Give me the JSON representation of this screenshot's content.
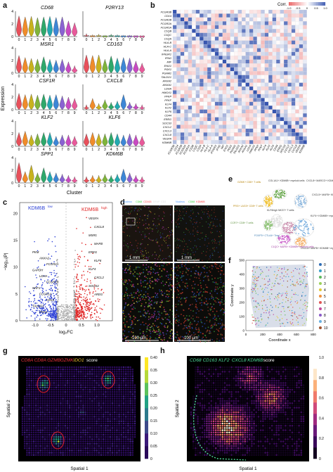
{
  "panel_labels": [
    "a",
    "b",
    "c",
    "d",
    "e",
    "f",
    "g",
    "h"
  ],
  "panel_a": {
    "genes": [
      "CD68",
      "P2RY13",
      "MSR1",
      "CD163",
      "CSF1R",
      "CXCL8",
      "KLF2",
      "KLF6",
      "SPP1",
      "KDM6B"
    ],
    "ylabel": "Expression",
    "xlabel": "Cluster",
    "clusters": [
      "0",
      "1",
      "2",
      "3",
      "4",
      "5",
      "6",
      "7",
      "8",
      "9"
    ],
    "cluster_colors": [
      "#e8505b",
      "#f08c2b",
      "#c8b21e",
      "#7fb43a",
      "#2ea86b",
      "#22a9b0",
      "#3d86d6",
      "#8a63d2",
      "#c84ac2",
      "#e85a9a"
    ],
    "violin_levels": [
      [
        0.82,
        0.78,
        0.8,
        0.75,
        0.78,
        0.8,
        0.76,
        0.78,
        0.62,
        0.55
      ],
      [
        0.12,
        0.08,
        0.1,
        0.06,
        0.1,
        0.08,
        0.06,
        0.06,
        0.05,
        0.04
      ],
      [
        0.7,
        0.62,
        0.58,
        0.56,
        0.65,
        0.55,
        0.52,
        0.55,
        0.45,
        0.3
      ],
      [
        0.72,
        0.7,
        0.72,
        0.55,
        0.68,
        0.6,
        0.62,
        0.6,
        0.48,
        0.4
      ],
      [
        0.65,
        0.6,
        0.62,
        0.58,
        0.62,
        0.58,
        0.6,
        0.55,
        0.5,
        0.45
      ],
      [
        0.2,
        0.45,
        0.25,
        0.4,
        0.3,
        0.35,
        0.6,
        0.3,
        0.25,
        0.2
      ],
      [
        0.55,
        0.6,
        0.45,
        0.5,
        0.55,
        0.55,
        0.4,
        0.45,
        0.45,
        0.4
      ],
      [
        0.5,
        0.55,
        0.5,
        0.5,
        0.55,
        0.5,
        0.45,
        0.5,
        0.45,
        0.4
      ],
      [
        0.8,
        0.45,
        0.7,
        0.4,
        0.6,
        0.45,
        0.4,
        0.35,
        0.3,
        0.25
      ],
      [
        0.25,
        0.3,
        0.3,
        0.35,
        0.3,
        0.35,
        0.55,
        0.4,
        0.3,
        0.25
      ]
    ]
  },
  "panel_b": {
    "legend_title": "Corr.",
    "legend_ticks": [
      "-1.0",
      "-0.5",
      "0",
      "0.5",
      "1.0"
    ],
    "genes": [
      "FCGR3B",
      "CD14",
      "FCGR2B",
      "FCGR2A",
      "FCGR1A",
      "C1QB",
      "C1QC",
      "C1QA",
      "HLA-B",
      "HLA-C",
      "HLA-A",
      "IFNGR1",
      "IFNG",
      "MIF",
      "ENO1",
      "PGK1",
      "PGAM1",
      "TALDO1",
      "ANXA2",
      "ANXA1",
      "LDHA",
      "HMOX1",
      "PFKP",
      "PFKF",
      "KLF4",
      "KLF2",
      "KLF6",
      "CD44",
      "EREG",
      "SOCS3",
      "CXCL2",
      "CXCL3",
      "CXCL8",
      "VEGFA",
      "KDM6B"
    ]
  },
  "panel_c": {
    "label_low": "KDM6B",
    "label_low_sup": "low",
    "label_high": "KDM6B",
    "label_high_sup": "high",
    "xlabel": "log₂FC",
    "ylabel": "−log₁₀|P|",
    "xticks": [
      "-1.0",
      "-0.5",
      "0",
      "0.5",
      "1.0"
    ],
    "yticks": [
      "0",
      "5",
      "10",
      "15",
      "20"
    ],
    "left_genes": [
      "PKM",
      "ANXA2",
      "FCGR2A",
      "GAPDH",
      "LDHA",
      "FCGR2B",
      "NRF1",
      "FCGR1A",
      "CD14",
      "TALDO1",
      "PGK1"
    ],
    "right_genes": [
      "VEGFA",
      "CXCL8",
      "MSR1",
      "MAFB",
      "EREG",
      "KLF6",
      "KLF4",
      "CXCL2",
      "SOCS3",
      "AREG"
    ]
  },
  "panel_d": {
    "stains_left": [
      "Nucleus",
      "CD68",
      "CD163",
      "GFAP",
      "CD3"
    ],
    "stains_right": [
      "Nucleus",
      "CD68",
      "KDM6B"
    ],
    "scale_large": "1 mm",
    "scale_small": "100 µm"
  },
  "panel_e": {
    "annotations": [
      "GZMK+ CD8+ T cells",
      "COL1A1+ KDM6B+ myeloid cells",
      "CXCL8+ MARCO+ KDM6B+ myeloid cells",
      "CXCL5+ MAFB+ KDM6B+ myeloid cells",
      "PRG+ LAG3+ CD8+ T cells",
      "KLF6high NKG7+ T cells",
      "CCR7+ CD8+ T cells",
      "FOXP3+ CTLA4+ Treg",
      "CXCL8+ MAFB+ KDM6B+ myeloid cells",
      "KLF4+ KDM6B+ myeloid cells",
      "C1QC+ MAFB+ KDM6B+ myeloid cells"
    ]
  },
  "panel_f": {
    "xlabel": "Coordinate x",
    "ylabel": "Coordinate y",
    "xticks": [
      "0",
      "200",
      "400",
      "600",
      "800"
    ],
    "yticks": [
      "0",
      "100",
      "200",
      "300",
      "400",
      "500"
    ],
    "legend": [
      "0",
      "1",
      "2",
      "3",
      "4",
      "5",
      "6",
      "7",
      "8",
      "9",
      "10"
    ],
    "legend_colors": [
      "#2f6db5",
      "#3aa0c8",
      "#5cb85c",
      "#9bd15a",
      "#e2c93a",
      "#f0903a",
      "#e05555",
      "#c04a9a",
      "#8a5ac8",
      "#6ab0e0",
      "#a0522d"
    ]
  },
  "panel_g": {
    "title_parts": [
      "CD8A",
      "CD8A",
      "GZMB",
      "GZMK",
      "IDO1",
      "score"
    ],
    "title_colors": [
      "#e8303a",
      "#e8303a",
      "#e8303a",
      "#e8303a",
      "#f1c232",
      "#ffffff"
    ],
    "xlabel": "Spatial 1",
    "ylabel": "Spatial 2",
    "colorbar_ticks": [
      "0.40",
      "0.35",
      "0.30",
      "0.25",
      "0.20",
      "0.15",
      "0.10",
      "0.05",
      "0"
    ]
  },
  "panel_h": {
    "title_parts": [
      "CD68",
      "CD163",
      "KLF2",
      "CXCL8",
      "KDM6B",
      "score"
    ],
    "title_colors": [
      "#4fdc9a",
      "#4fdc9a",
      "#4fdc9a",
      "#4fdc9a",
      "#4fdc9a",
      "#ffffff"
    ],
    "xlabel": "Spatial 1",
    "ylabel": "Spatial 2",
    "colorbar_ticks": [
      "1.0",
      "0.8",
      "0.6",
      "0.4",
      "0.2",
      "0"
    ]
  }
}
